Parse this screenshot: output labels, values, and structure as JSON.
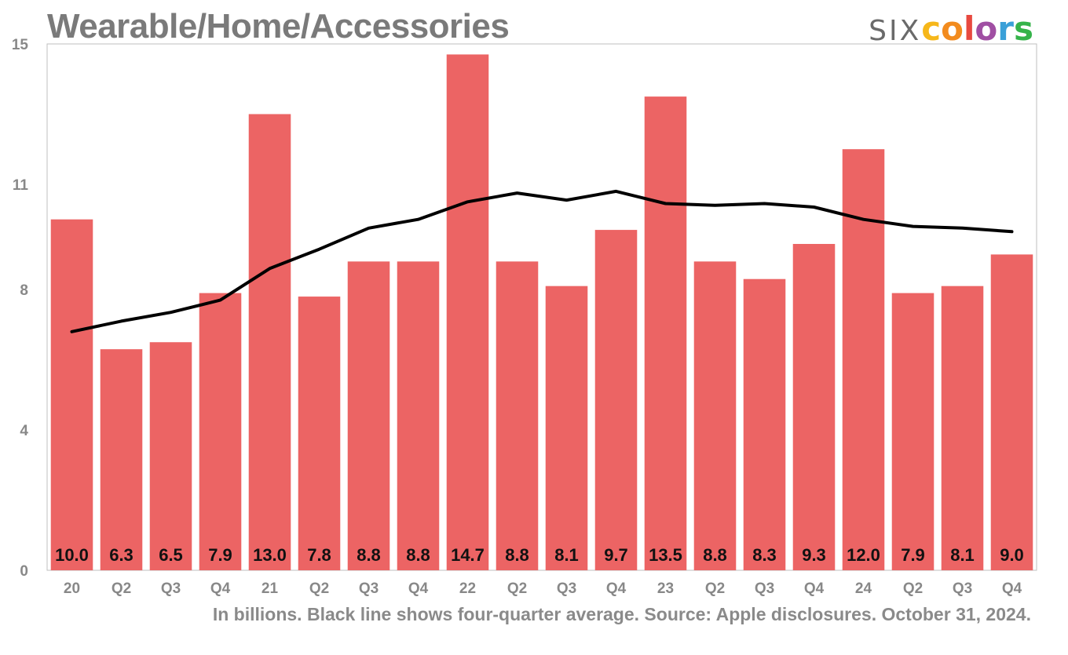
{
  "title": "Wearable/Home/Accessories",
  "logo": {
    "six": "SIX",
    "colors": [
      "c",
      "o",
      "l",
      "o",
      "r",
      "s"
    ],
    "palette": [
      "#f6b71a",
      "#f28b1e",
      "#e8493f",
      "#a04fa3",
      "#3aa0d8",
      "#35b34a"
    ]
  },
  "footer": "In billions. Black line shows four-quarter average. Source: Apple disclosures. October 31, 2024.",
  "colors": {
    "bar": "#ec6464",
    "line": "#000000",
    "axis_text": "#888888",
    "frame": "#bfbfbf"
  },
  "chart_data": {
    "type": "bar",
    "categories": [
      "20",
      "Q2",
      "Q3",
      "Q4",
      "21",
      "Q2",
      "Q3",
      "Q4",
      "22",
      "Q2",
      "Q3",
      "Q4",
      "23",
      "Q2",
      "Q3",
      "Q4",
      "24",
      "Q2",
      "Q3",
      "Q4"
    ],
    "series": [
      {
        "values": [
          10.0,
          6.3,
          6.5,
          7.9,
          13.0,
          7.8,
          8.8,
          8.8,
          14.7,
          8.8,
          8.1,
          9.7,
          13.5,
          8.8,
          8.3,
          9.3,
          12.0,
          7.9,
          8.1,
          9.0
        ]
      }
    ],
    "data_labels": [
      "10.0",
      "6.3",
      "6.5",
      "7.9",
      "13.0",
      "7.8",
      "8.8",
      "8.8",
      "14.7",
      "8.8",
      "8.1",
      "9.7",
      "13.5",
      "8.8",
      "8.3",
      "9.3",
      "12.0",
      "7.9",
      "8.1",
      "9.0"
    ],
    "average_line": [
      6.8,
      7.1,
      7.35,
      7.7,
      8.6,
      9.15,
      9.75,
      10.0,
      10.5,
      10.75,
      10.55,
      10.8,
      10.45,
      10.4,
      10.45,
      10.35,
      10.0,
      9.8,
      9.75,
      9.65
    ],
    "y_ticks": [
      "0",
      "4",
      "8",
      "11",
      "15"
    ],
    "ylim": [
      0,
      15
    ],
    "grid": false
  }
}
